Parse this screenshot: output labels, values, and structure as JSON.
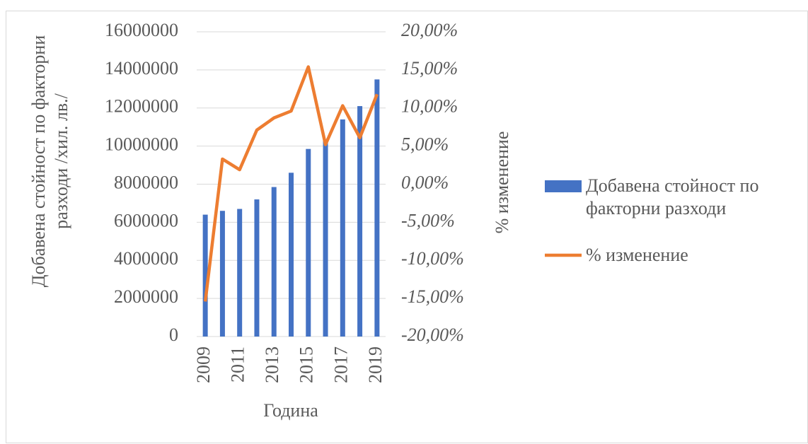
{
  "chart_data": {
    "type": "bar-line",
    "categories": [
      "2009",
      null,
      "2011",
      null,
      "2013",
      null,
      "2015",
      null,
      "2017",
      null,
      "2019"
    ],
    "xlabel": "Година",
    "ylabel": "Добавена стойност по факторни разходи /хил. лв./",
    "y2label": "% изменение",
    "ylim": [
      0,
      16000000
    ],
    "yticks": [
      0,
      2000000,
      4000000,
      6000000,
      8000000,
      10000000,
      12000000,
      14000000,
      16000000
    ],
    "y2lim": [
      -20,
      20
    ],
    "y2ticks": [
      {
        "value": -20,
        "label": "-20,00%"
      },
      {
        "value": -15,
        "label": "-15,00%"
      },
      {
        "value": -10,
        "label": "-10,00%"
      },
      {
        "value": -5,
        "label": "-5,00%"
      },
      {
        "value": 0,
        "label": "0,00%"
      },
      {
        "value": 5,
        "label": "5,00%"
      },
      {
        "value": 10,
        "label": "10,00%"
      },
      {
        "value": 15,
        "label": "15,00%"
      },
      {
        "value": 20,
        "label": "20,00%"
      }
    ],
    "grid": true,
    "legend": "right",
    "series": [
      {
        "name": "Добавена стойност по факторни разходи",
        "type": "bar",
        "color": "#4472c4",
        "values": [
          6400000,
          6600000,
          6700000,
          7200000,
          7850000,
          8600000,
          9850000,
          10300000,
          11400000,
          12100000,
          13500000
        ]
      },
      {
        "name": "% изменение",
        "type": "line",
        "axis": "y2",
        "color": "#ed7d31",
        "values": [
          -15.4,
          3.3,
          1.9,
          7.1,
          8.7,
          9.6,
          15.4,
          5.2,
          10.3,
          6.1,
          11.8
        ]
      }
    ]
  }
}
